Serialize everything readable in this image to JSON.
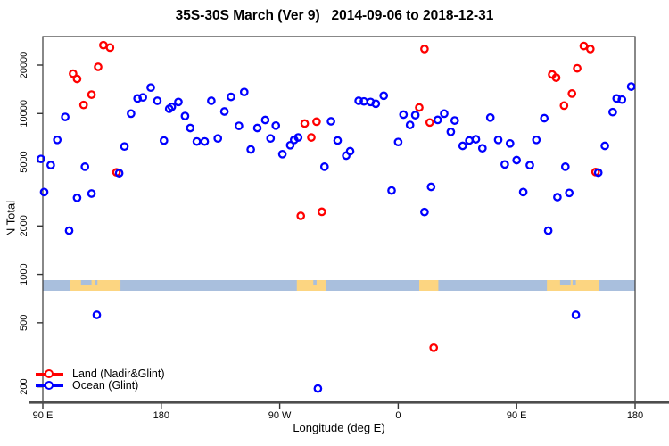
{
  "title": "35S-30S March (Ver 9)   2014-09-06 to 2018-12-31",
  "axes": {
    "y_label": "N Total",
    "x_label": "Longitude (deg E)",
    "y_ticks": [
      {
        "value": 20000,
        "label": "20000"
      },
      {
        "value": 10000,
        "label": "10000"
      },
      {
        "value": 5000,
        "label": "5000"
      },
      {
        "value": 2000,
        "label": "2000"
      },
      {
        "value": 1000,
        "label": "1000"
      },
      {
        "value": 500,
        "label": "500"
      },
      {
        "value": 200,
        "label": "200"
      }
    ],
    "x_ticks": [
      {
        "deg": 90,
        "label": "90 E"
      },
      {
        "deg": 180,
        "label": "180"
      },
      {
        "deg": 270,
        "label": "90 W"
      },
      {
        "deg": 360,
        "label": "0"
      },
      {
        "deg": 450,
        "label": "90 E"
      },
      {
        "deg": 540,
        "label": "180"
      }
    ]
  },
  "legend": [
    {
      "label": "Land (Nadir&Glint)",
      "color": "#ff0000"
    },
    {
      "label": "Ocean (Glint)",
      "color": "#0000ff"
    }
  ],
  "colors": {
    "land_points": "#ff0000",
    "ocean_points": "#0000ff",
    "box_border": "#3a3a3a",
    "axis_heavy_line": "#4d4d4d",
    "text": "#000000"
  },
  "map_band": {
    "description": "land/ocean strip along the longitude axis near N=1000",
    "ocean_color": "#a9bfdd",
    "land_color": "#fcd581",
    "land_segments_deg": [
      [
        110.5,
        149
      ],
      [
        283,
        305
      ],
      [
        376,
        390.5
      ],
      [
        473,
        512.5
      ]
    ],
    "coast_notches_deg": [
      [
        119,
        127
      ],
      [
        129.5,
        131.5
      ],
      [
        295.5,
        298
      ],
      [
        483,
        491
      ],
      [
        492.5,
        495
      ]
    ]
  },
  "chart_data": {
    "type": "scatter",
    "title": "35S-30S March (Ver 9)   2014-09-06 to 2018-12-31",
    "xlabel": "Longitude (deg E)",
    "ylabel": "N Total",
    "x_axis": {
      "range_deg": [
        90,
        540
      ],
      "tick_step_deg": 90,
      "tick_labels": [
        "90 E",
        "180",
        "90 W",
        "0",
        "90 E",
        "180"
      ],
      "note": "longitude wraps eastward from 90E for 450 degrees"
    },
    "y_axis": {
      "scale": "log",
      "range": [
        160,
        30000
      ],
      "ticks": [
        200,
        500,
        1000,
        2000,
        5000,
        10000,
        20000
      ]
    },
    "grid": false,
    "legend_position": "bottom-left",
    "series": [
      {
        "name": "Land (Nadir&Glint)",
        "color": "#ff0000",
        "points": [
          [
            136,
            26600
          ],
          [
            141,
            25700
          ],
          [
            132,
            19500
          ],
          [
            113,
            17700
          ],
          [
            116,
            16400
          ],
          [
            127,
            13100
          ],
          [
            121,
            11300
          ],
          [
            146,
            4310
          ],
          [
            289,
            8670
          ],
          [
            298,
            8900
          ],
          [
            294,
            7100
          ],
          [
            286,
            2310
          ],
          [
            302,
            2450
          ],
          [
            380,
            25200
          ],
          [
            376,
            10900
          ],
          [
            384,
            8800
          ],
          [
            387,
            350
          ],
          [
            501,
            26300
          ],
          [
            506,
            25200
          ],
          [
            496,
            19100
          ],
          [
            477,
            17500
          ],
          [
            480,
            16700
          ],
          [
            492,
            13300
          ],
          [
            486,
            11200
          ],
          [
            510,
            4330
          ]
        ]
      },
      {
        "name": "Ocean (Glint)",
        "color": "#0000ff",
        "points": [
          [
            88.6,
            5220
          ],
          [
            91,
            3250
          ],
          [
            96,
            4780
          ],
          [
            101,
            6860
          ],
          [
            107,
            9520
          ],
          [
            110,
            1870
          ],
          [
            116,
            2990
          ],
          [
            122,
            4670
          ],
          [
            127,
            3180
          ],
          [
            131,
            560
          ],
          [
            148,
            4260
          ],
          [
            152,
            6240
          ],
          [
            157,
            9980
          ],
          [
            162,
            12400
          ],
          [
            166,
            12600
          ],
          [
            172,
            14500
          ],
          [
            177,
            12000
          ],
          [
            182,
            6790
          ],
          [
            186,
            10700
          ],
          [
            188,
            11000
          ],
          [
            193,
            11800
          ],
          [
            198,
            9650
          ],
          [
            202,
            8130
          ],
          [
            207,
            6700
          ],
          [
            213,
            6700
          ],
          [
            218,
            12000
          ],
          [
            223,
            7000
          ],
          [
            228,
            10300
          ],
          [
            233,
            12700
          ],
          [
            239,
            8380
          ],
          [
            243,
            13600
          ],
          [
            248,
            5980
          ],
          [
            253,
            8130
          ],
          [
            259,
            9120
          ],
          [
            263,
            7000
          ],
          [
            267,
            8410
          ],
          [
            272,
            5590
          ],
          [
            278,
            6350
          ],
          [
            281,
            6860
          ],
          [
            284,
            7100
          ],
          [
            299,
            195
          ],
          [
            304,
            4670
          ],
          [
            309,
            8950
          ],
          [
            314,
            6800
          ],
          [
            320.5,
            5470
          ],
          [
            323.5,
            5830
          ],
          [
            330,
            12000
          ],
          [
            334,
            11900
          ],
          [
            339,
            11800
          ],
          [
            343,
            11500
          ],
          [
            349,
            12900
          ],
          [
            355,
            3320
          ],
          [
            360,
            6650
          ],
          [
            364,
            9850
          ],
          [
            369,
            8490
          ],
          [
            373,
            9770
          ],
          [
            380,
            2440
          ],
          [
            385,
            3500
          ],
          [
            390,
            9130
          ],
          [
            395,
            9980
          ],
          [
            400,
            7690
          ],
          [
            403,
            9050
          ],
          [
            409,
            6300
          ],
          [
            414,
            6800
          ],
          [
            419,
            6920
          ],
          [
            424,
            6080
          ],
          [
            430,
            9440
          ],
          [
            436,
            6860
          ],
          [
            441,
            4830
          ],
          [
            445,
            6520
          ],
          [
            450,
            5130
          ],
          [
            455,
            3250
          ],
          [
            460,
            4770
          ],
          [
            465,
            6860
          ],
          [
            471,
            9360
          ],
          [
            474,
            1870
          ],
          [
            481,
            3020
          ],
          [
            487,
            4670
          ],
          [
            490,
            3210
          ],
          [
            495,
            560
          ],
          [
            512,
            4290
          ],
          [
            517,
            6300
          ],
          [
            523,
            10200
          ],
          [
            526,
            12400
          ],
          [
            530,
            12200
          ],
          [
            537,
            14700
          ]
        ]
      }
    ]
  }
}
